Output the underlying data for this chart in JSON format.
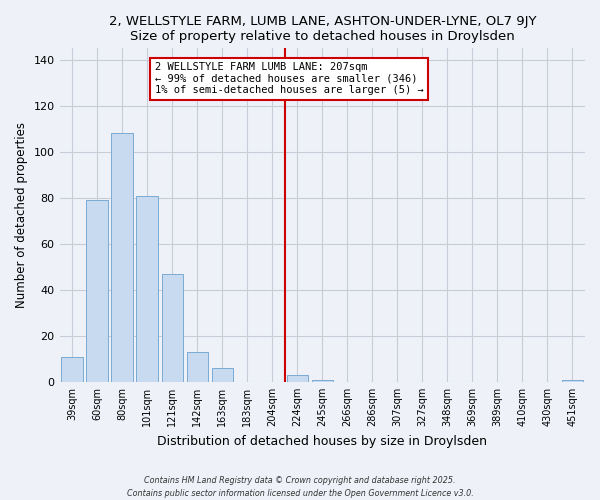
{
  "title1": "2, WELLSTYLE FARM, LUMB LANE, ASHTON-UNDER-LYNE, OL7 9JY",
  "title2": "Size of property relative to detached houses in Droylsden",
  "xlabel": "Distribution of detached houses by size in Droylsden",
  "ylabel": "Number of detached properties",
  "bar_labels": [
    "39sqm",
    "60sqm",
    "80sqm",
    "101sqm",
    "121sqm",
    "142sqm",
    "163sqm",
    "183sqm",
    "204sqm",
    "224sqm",
    "245sqm",
    "266sqm",
    "286sqm",
    "307sqm",
    "327sqm",
    "348sqm",
    "369sqm",
    "389sqm",
    "410sqm",
    "430sqm",
    "451sqm"
  ],
  "bar_values": [
    11,
    79,
    108,
    81,
    47,
    13,
    6,
    0,
    0,
    3,
    1,
    0,
    0,
    0,
    0,
    0,
    0,
    0,
    0,
    0,
    1
  ],
  "bar_color": "#c8daf0",
  "bar_edge_color": "#7aaad4",
  "vline_x": 8.5,
  "vline_color": "#cc0000",
  "annotation_title": "2 WELLSTYLE FARM LUMB LANE: 207sqm",
  "annotation_line1": "← 99% of detached houses are smaller (346)",
  "annotation_line2": "1% of semi-detached houses are larger (5) →",
  "annotation_box_color": "white",
  "annotation_box_edge": "#cc0000",
  "ylim": [
    0,
    145
  ],
  "yticks": [
    0,
    20,
    40,
    60,
    80,
    100,
    120,
    140
  ],
  "footer1": "Contains HM Land Registry data © Crown copyright and database right 2025.",
  "footer2": "Contains public sector information licensed under the Open Government Licence v3.0.",
  "bg_color": "#eef2f8",
  "grid_color": "#c8ccd8"
}
